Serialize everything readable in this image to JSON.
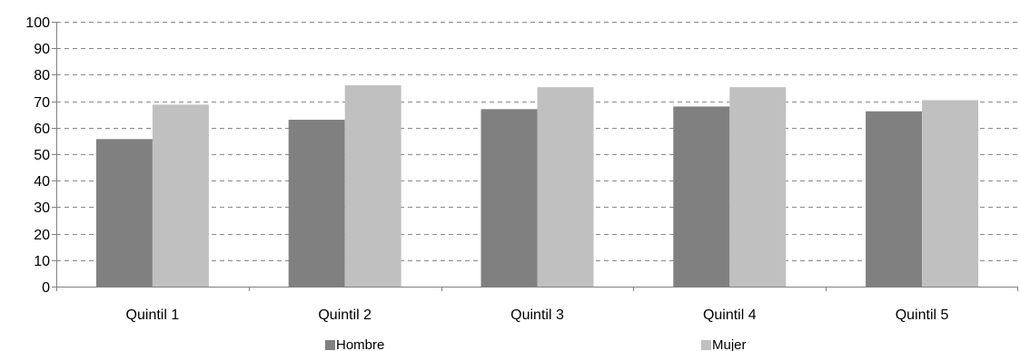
{
  "chart_data": {
    "type": "bar",
    "categories": [
      "Quintil 1",
      "Quintil 2",
      "Quintil 3",
      "Quintil 4",
      "Quintil 5"
    ],
    "series": [
      {
        "name": "Hombre",
        "values": [
          55.7,
          63,
          67,
          68,
          66.2
        ],
        "color": "#808080"
      },
      {
        "name": "Mujer",
        "values": [
          68.7,
          76,
          75.3,
          75.3,
          70.4
        ],
        "color": "#c0c0c0"
      }
    ],
    "title": "",
    "xlabel": "",
    "ylabel": "",
    "ylim": [
      0,
      100
    ],
    "yticks": [
      "0",
      "10",
      "20",
      "30",
      "40",
      "50",
      "60",
      "70",
      "80",
      "90",
      "100"
    ],
    "grid": true,
    "legend": "bottom"
  }
}
